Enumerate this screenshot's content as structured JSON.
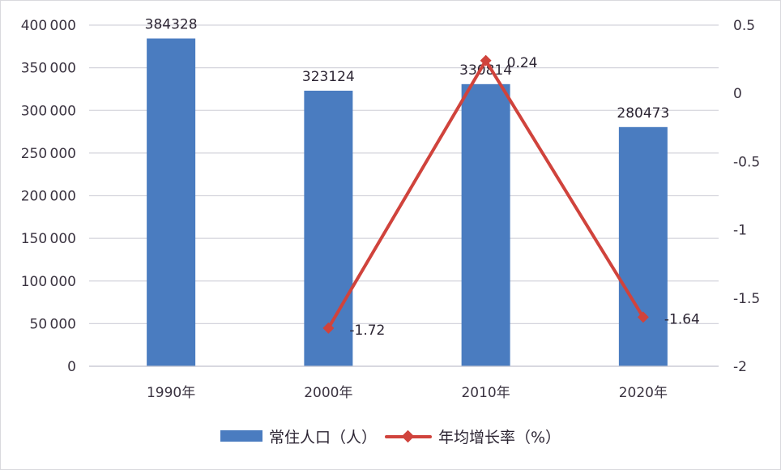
{
  "chart_data": {
    "type": "bar",
    "title": "",
    "xlabel": "",
    "ylabel": "",
    "categories": [
      "1990年",
      "2000年",
      "2010年",
      "2020年"
    ],
    "series": [
      {
        "name": "常住人口（人）",
        "type": "bar",
        "axis": "left",
        "color": "#4a7cc0",
        "values": [
          384328,
          323124,
          330814,
          280473
        ],
        "labels": [
          "384328",
          "323124",
          "330814",
          "280473"
        ]
      },
      {
        "name": "年均增长率（%）",
        "type": "line",
        "axis": "right",
        "color": "#d0433c",
        "marker": "diamond",
        "values": [
          null,
          -1.72,
          0.24,
          -1.64
        ],
        "labels": [
          "",
          "-1.72",
          "0.24",
          "-1.64"
        ]
      }
    ],
    "ylim": [
      0,
      400000
    ],
    "y_ticks": [
      "400000",
      "350000",
      "300000",
      "250000",
      "200000",
      "150000",
      "100000",
      "50000",
      "0"
    ],
    "y2lim": [
      -2,
      0.5
    ],
    "y2_ticks": [
      "0.5",
      "0",
      "-0.5",
      "-1",
      "-1.5",
      "-2"
    ],
    "grid": true,
    "legend_position": "bottom"
  },
  "legend": {
    "bar_label": "常住人口（人）",
    "line_label": "年均增长率（%）"
  }
}
